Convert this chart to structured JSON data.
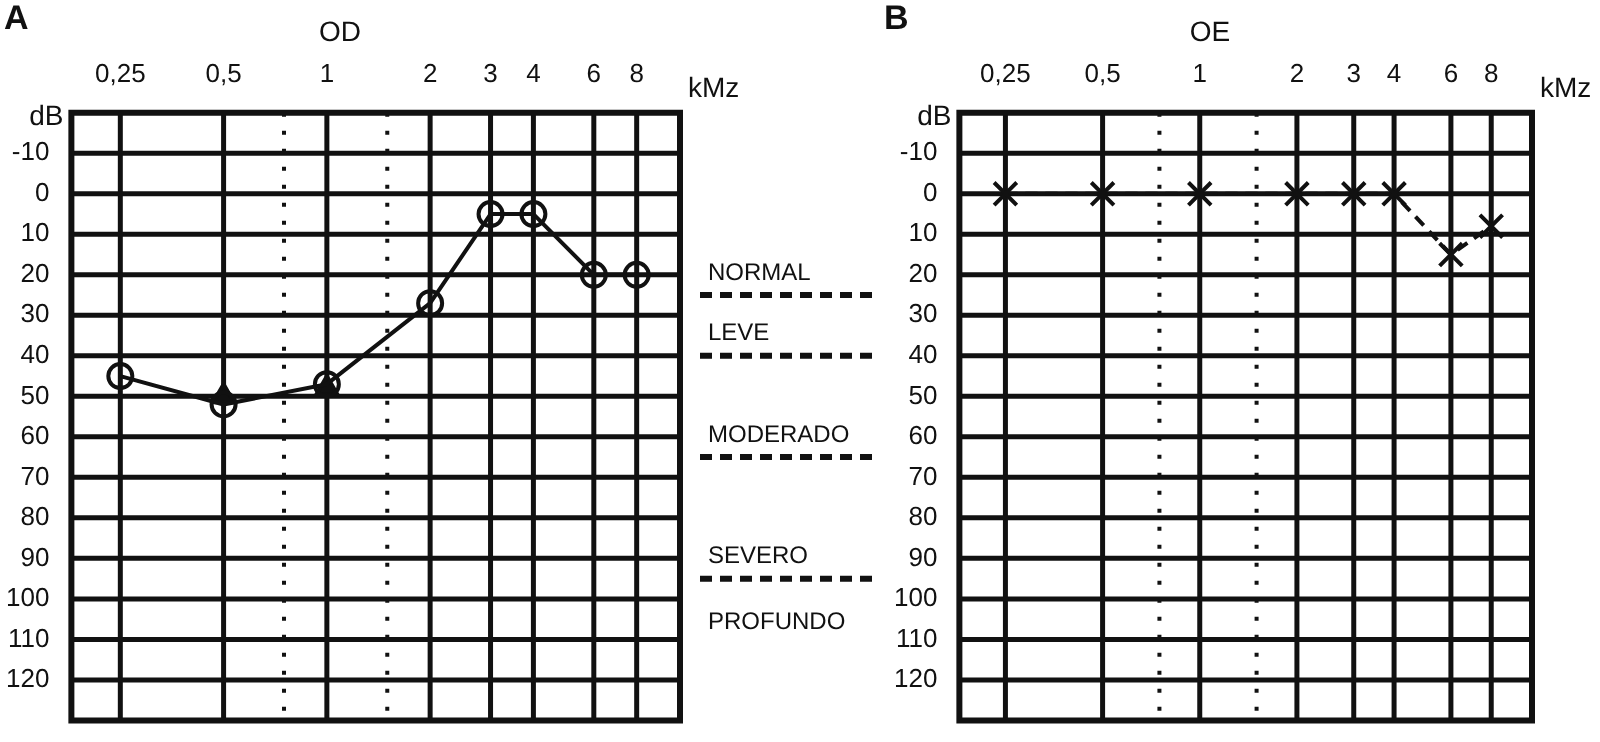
{
  "chart_data": [
    {
      "type": "line",
      "title": "OD",
      "xlabel": "kMz",
      "ylabel": "dB",
      "log": "x",
      "grid": true,
      "legend": false,
      "xlim": [
        0.18,
        10.7
      ],
      "ylim": [
        130,
        -20
      ],
      "xticks": [
        {
          "value": 0.25,
          "label": "0,25"
        },
        {
          "value": 0.5,
          "label": "0,5"
        },
        {
          "value": 0.75,
          "label": null
        },
        1,
        {
          "value": 1.5,
          "label": null
        },
        2,
        3,
        4,
        6,
        8
      ],
      "yticks": [
        -10,
        0,
        10,
        20,
        30,
        40,
        50,
        60,
        70,
        80,
        90,
        100,
        110,
        120
      ],
      "series": [
        {
          "color": "#111111",
          "marker": "circle",
          "line_style": "solid",
          "x": [
            0.25,
            0.5,
            1,
            2,
            3,
            4,
            6,
            8
          ],
          "values": [
            45,
            52,
            47,
            27,
            5,
            5,
            20,
            20
          ]
        },
        {
          "type": "scatter",
          "color": "#111111",
          "marker": "triangle",
          "x": [
            0.5,
            1
          ],
          "values": [
            50,
            48
          ]
        }
      ],
      "ref_lines": [
        {
          "axis": "y",
          "value": 25,
          "label": "NORMAL",
          "line_style": "dashed"
        },
        {
          "axis": "y",
          "value": 40,
          "label": "LEVE",
          "line_style": "dashed"
        },
        {
          "axis": "y",
          "value": 65,
          "label": "MODERADO",
          "line_style": "dashed"
        },
        {
          "axis": "y",
          "value": 95,
          "label": "SEVERO",
          "line_style": "dashed"
        }
      ],
      "annotations": [
        "A",
        "PROFUNDO"
      ]
    },
    {
      "type": "line",
      "title": "OE",
      "xlabel": "kMz",
      "ylabel": "dB",
      "log": "x",
      "grid": true,
      "legend": false,
      "xlim": [
        0.18,
        10.7
      ],
      "ylim": [
        130,
        -20
      ],
      "xticks": [
        {
          "value": 0.25,
          "label": "0,25"
        },
        {
          "value": 0.5,
          "label": "0,5"
        },
        {
          "value": 0.75,
          "label": null
        },
        1,
        {
          "value": 1.5,
          "label": null
        },
        2,
        3,
        4,
        6,
        8
      ],
      "yticks": [
        -10,
        0,
        10,
        20,
        30,
        40,
        50,
        60,
        70,
        80,
        90,
        100,
        110,
        120
      ],
      "series": [
        {
          "color": "#111111",
          "marker": "cross",
          "line_style": "dashed",
          "x": [
            0.25,
            0.5,
            1,
            2,
            3,
            4,
            6,
            8
          ],
          "values": [
            0,
            0,
            0,
            0,
            0,
            0,
            15,
            8
          ]
        }
      ],
      "annotations": [
        "B"
      ]
    }
  ]
}
